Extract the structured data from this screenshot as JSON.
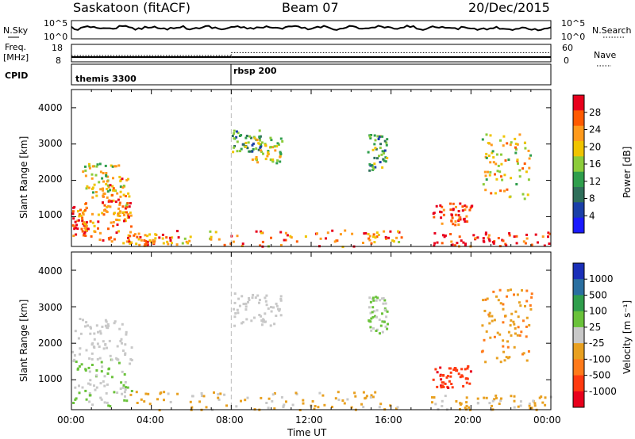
{
  "header": {
    "station": "Saskatoon (fitACF)",
    "beam": "Beam 07",
    "date": "20/Dec/2015"
  },
  "panels": {
    "nsky": {
      "left_label": "N.Sky",
      "left_ticks": [
        "10^5",
        "10^0"
      ],
      "right_label": "N.Search",
      "right_ticks": [
        "10^5",
        "10^0"
      ]
    },
    "freq": {
      "left_label_1": "Freq.",
      "left_label_2": "[MHz]",
      "left_ticks": [
        "18",
        "8"
      ],
      "right_label": "Nave",
      "right_ticks": [
        "60",
        "0"
      ]
    },
    "cpid": {
      "label": "CPID",
      "segments": [
        "themis 3300",
        "rbsp 200"
      ]
    }
  },
  "power_panel": {
    "ylabel": "Slant Range [km]",
    "yticks": [
      "4000",
      "3000",
      "2000",
      "1000"
    ],
    "colorbar_label": "Power [dB]",
    "colorbar_ticks": [
      "28",
      "24",
      "20",
      "16",
      "12",
      "8",
      "4"
    ],
    "colors": [
      "#e8001c",
      "#ff5a00",
      "#ff9a1c",
      "#f0c400",
      "#8ccc3a",
      "#2f9e4c",
      "#2f6f5a",
      "#1a3fa8",
      "#1a1aff"
    ]
  },
  "velocity_panel": {
    "ylabel": "Slant Range [km]",
    "yticks": [
      "4000",
      "3000",
      "2000",
      "1000"
    ],
    "colorbar_label": "Velocity [m s⁻¹]",
    "colorbar_ticks": [
      "1000",
      "500",
      "100",
      "25",
      "-25",
      "-100",
      "-500",
      "-1000"
    ],
    "colors": [
      "#1a2fb8",
      "#2a6fa0",
      "#2f9e4c",
      "#6ac23a",
      "#c8c8c8",
      "#e8a020",
      "#ff7a1a",
      "#ff3a10",
      "#e8001c"
    ]
  },
  "xaxis": {
    "label": "Time UT",
    "ticks": [
      "00:00",
      "04:00",
      "08:00",
      "12:00",
      "16:00",
      "20:00",
      "00:00"
    ]
  },
  "chart_data": {
    "type": "heatmap",
    "title": "Saskatoon (fitACF) Beam 07 20/Dec/2015",
    "xlabel": "Time UT",
    "ylabel": "Slant Range [km]",
    "xlim": [
      0,
      24
    ],
    "ylim": [
      180,
      4500
    ],
    "grid": false,
    "power_range_db": [
      0,
      32
    ],
    "velocity_range_ms": [
      -1000,
      1000
    ],
    "cpid_changes": [
      {
        "start_hr": 0,
        "name": "themis 3300"
      },
      {
        "start_hr": 8,
        "name": "rbsp 200"
      }
    ],
    "frequency_mhz": [
      {
        "x": [
          0,
          8
        ],
        "value": 10.5
      },
      {
        "x": [
          8,
          24
        ],
        "value": 10.5
      }
    ],
    "nave": [
      {
        "x": [
          0,
          8
        ],
        "value": 22
      },
      {
        "x": [
          8,
          24
        ],
        "value": 36
      }
    ],
    "power_scatter_regions": [
      {
        "t": [
          0.0,
          0.8
        ],
        "r": [
          500,
          1300
        ],
        "db": 27
      },
      {
        "t": [
          0.5,
          3.0
        ],
        "r": [
          300,
          1600
        ],
        "db": 26
      },
      {
        "t": [
          0.5,
          2.5
        ],
        "r": [
          1500,
          2500
        ],
        "db": 18
      },
      {
        "t": [
          1.5,
          3.0
        ],
        "r": [
          900,
          2100
        ],
        "db": 23
      },
      {
        "t": [
          2.8,
          5.0
        ],
        "r": [
          200,
          600
        ],
        "db": 25
      },
      {
        "t": [
          5.0,
          16.5
        ],
        "r": [
          200,
          650
        ],
        "db": 24
      },
      {
        "t": [
          8.0,
          9.5
        ],
        "r": [
          2800,
          3400
        ],
        "db": 12
      },
      {
        "t": [
          9.0,
          10.5
        ],
        "r": [
          2500,
          3200
        ],
        "db": 18
      },
      {
        "t": [
          14.8,
          15.8
        ],
        "r": [
          2300,
          3300
        ],
        "db": 12
      },
      {
        "t": [
          18.0,
          20.0
        ],
        "r": [
          800,
          1400
        ],
        "db": 29
      },
      {
        "t": [
          18.0,
          24.0
        ],
        "r": [
          200,
          600
        ],
        "db": 29
      },
      {
        "t": [
          20.5,
          23.0
        ],
        "r": [
          1500,
          3300
        ],
        "db": 20
      }
    ],
    "velocity_scatter_regions": [
      {
        "t": [
          0.0,
          3.0
        ],
        "r": [
          300,
          1600
        ],
        "v": 120
      },
      {
        "t": [
          0.0,
          3.0
        ],
        "r": [
          1500,
          2700
        ],
        "v": 0
      },
      {
        "t": [
          2.5,
          16.5
        ],
        "r": [
          200,
          700
        ],
        "v": -150
      },
      {
        "t": [
          8.0,
          10.5
        ],
        "r": [
          2500,
          3400
        ],
        "v": 0
      },
      {
        "t": [
          14.8,
          15.8
        ],
        "r": [
          2300,
          3300
        ],
        "v": 120
      },
      {
        "t": [
          18.0,
          20.0
        ],
        "r": [
          800,
          1400
        ],
        "v": -700
      },
      {
        "t": [
          18.0,
          24.0
        ],
        "r": [
          200,
          600
        ],
        "v": -150
      },
      {
        "t": [
          20.5,
          23.0
        ],
        "r": [
          1500,
          3500
        ],
        "v": -300
      }
    ]
  }
}
